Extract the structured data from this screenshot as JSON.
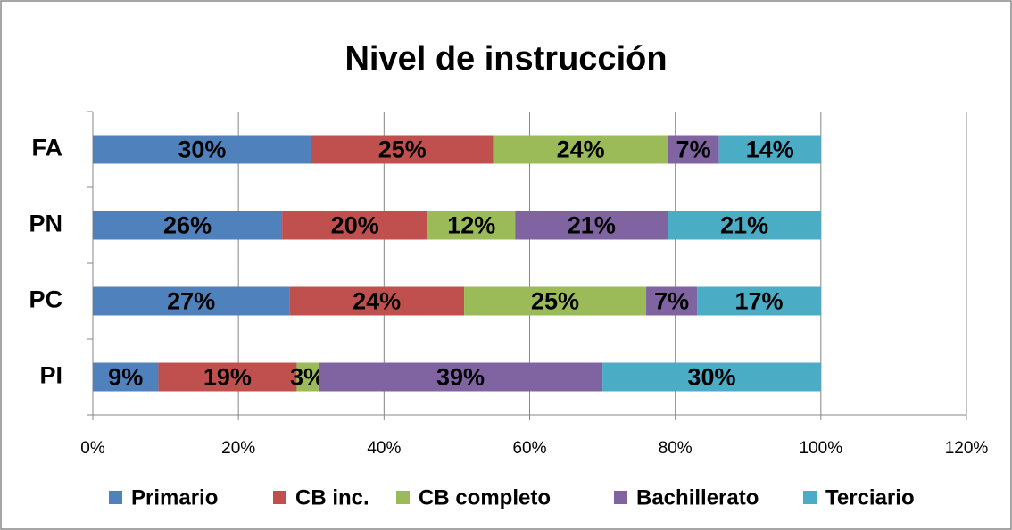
{
  "chart_data": {
    "type": "stacked_bar_horizontal",
    "title": "Nivel de instrucción",
    "categories": [
      "FA",
      "PN",
      "PC",
      "PI"
    ],
    "series": [
      {
        "name": "Primario",
        "color": "#4f81bd",
        "values": [
          30,
          26,
          27,
          9
        ],
        "value_labels": [
          "30%",
          "26%",
          "27%",
          "9%"
        ]
      },
      {
        "name": "CB inc.",
        "color": "#c0504d",
        "values": [
          25,
          20,
          24,
          19
        ],
        "value_labels": [
          "25%",
          "20%",
          "24%",
          "19%"
        ]
      },
      {
        "name": "CB completo",
        "color": "#9bbb59",
        "values": [
          24,
          12,
          25,
          3
        ],
        "value_labels": [
          "24%",
          "12%",
          "25%",
          "3%"
        ]
      },
      {
        "name": "Bachillerato",
        "color": "#8064a2",
        "values": [
          7,
          21,
          7,
          39
        ],
        "value_labels": [
          "7%",
          "21%",
          "7%",
          "39%"
        ]
      },
      {
        "name": "Terciario",
        "color": "#4bacc6",
        "values": [
          14,
          21,
          17,
          30
        ],
        "value_labels": [
          "14%",
          "21%",
          "17%",
          "30%"
        ]
      }
    ],
    "xlim": [
      0,
      120
    ],
    "xticks": [
      {
        "value": 0,
        "label": "0%"
      },
      {
        "value": 20,
        "label": "20%"
      },
      {
        "value": 40,
        "label": "40%"
      },
      {
        "value": 60,
        "label": "60%"
      },
      {
        "value": 80,
        "label": "80%"
      },
      {
        "value": 100,
        "label": "100%"
      },
      {
        "value": 120,
        "label": "120%"
      }
    ],
    "grid": true,
    "legend": "bottom"
  }
}
